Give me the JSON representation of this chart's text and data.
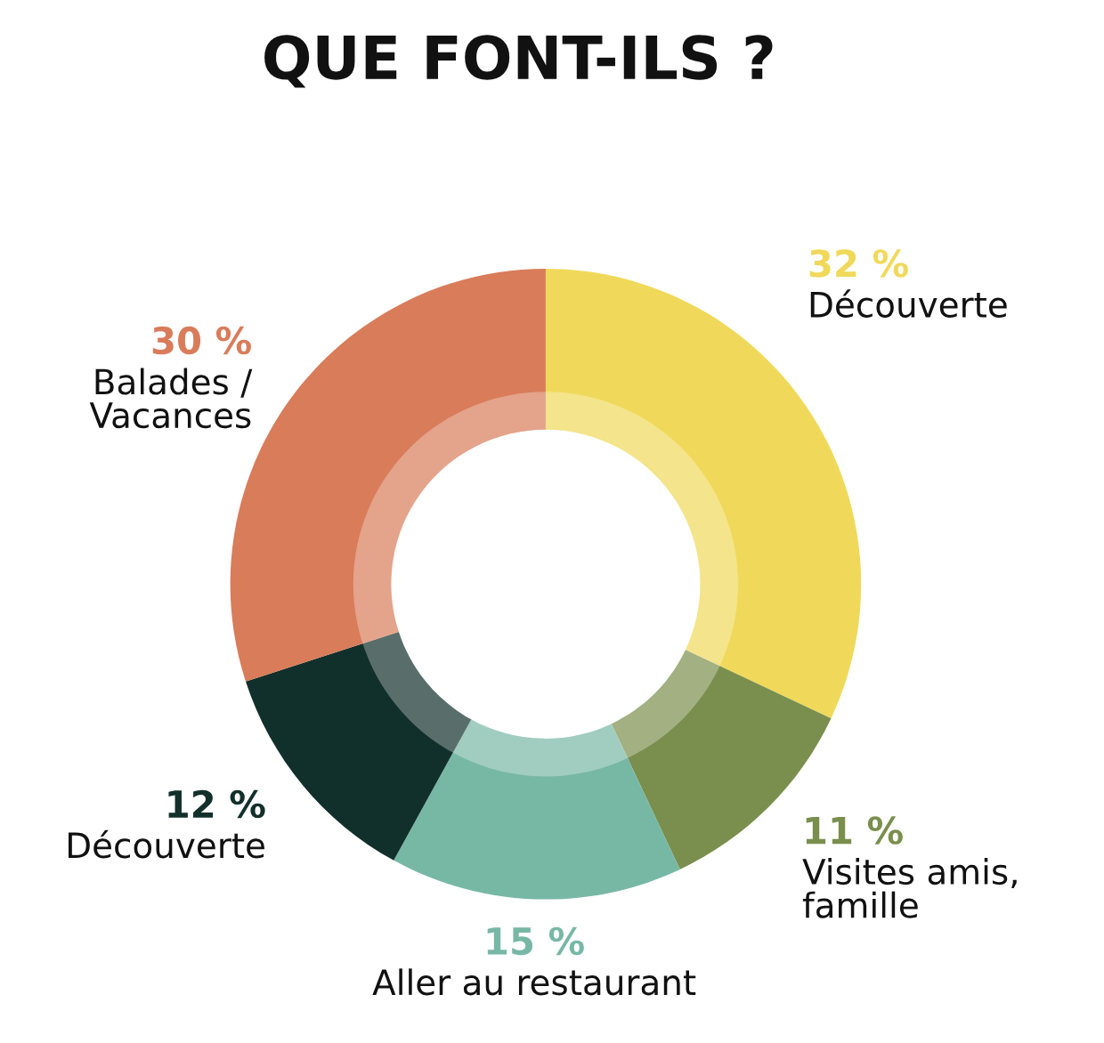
{
  "chart_data": {
    "type": "donut",
    "title": "QUE FONT-ILS ?",
    "categories": [
      "Découverte",
      "Visites amis,\nfamille",
      "Aller au restaurant",
      "Découverte",
      "Balades /\nVacances"
    ],
    "values": [
      32,
      11,
      15,
      12,
      30
    ],
    "colors": [
      "#f0d95a",
      "#7a8f4d",
      "#77b8a5",
      "#12302b",
      "#d97c5a"
    ],
    "value_labels": [
      "32 %",
      "11 %",
      "15 %",
      "12 %",
      "30 %"
    ],
    "legend": false
  }
}
